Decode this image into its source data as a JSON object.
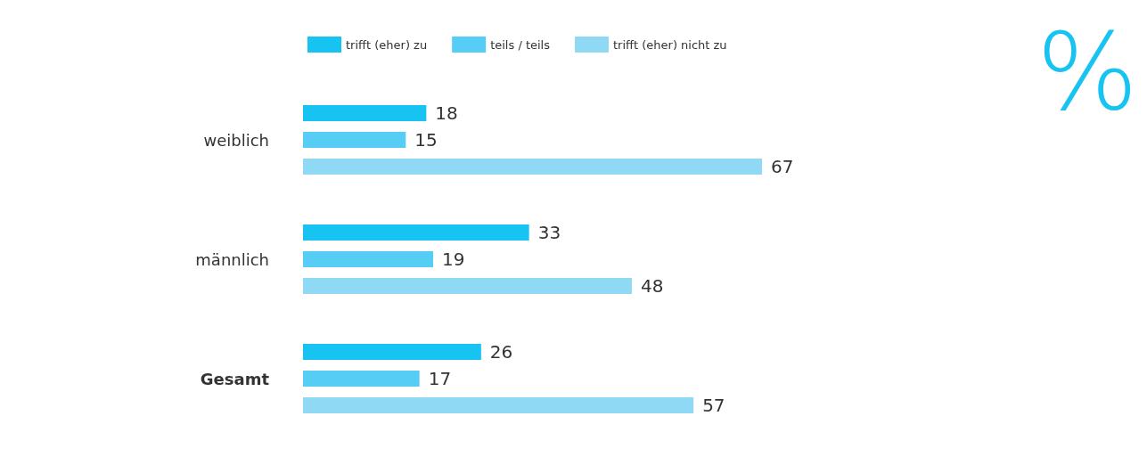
{
  "chart_data": {
    "type": "bar",
    "orientation": "horizontal",
    "categories": [
      "weiblich",
      "männlich",
      "Gesamt"
    ],
    "series": [
      {
        "name": "trifft (eher) zu",
        "color": "#17c3f0",
        "values": [
          18,
          33,
          26
        ]
      },
      {
        "name": "teils / teils",
        "color": "#55cdf5",
        "values": [
          15,
          19,
          17
        ]
      },
      {
        "name": "trifft (eher) nicht zu",
        "color": "#8fd9f5",
        "values": [
          67,
          48,
          57
        ]
      }
    ],
    "data_labels": true,
    "legend": "top",
    "grid": false,
    "annotations": [
      "%"
    ]
  }
}
